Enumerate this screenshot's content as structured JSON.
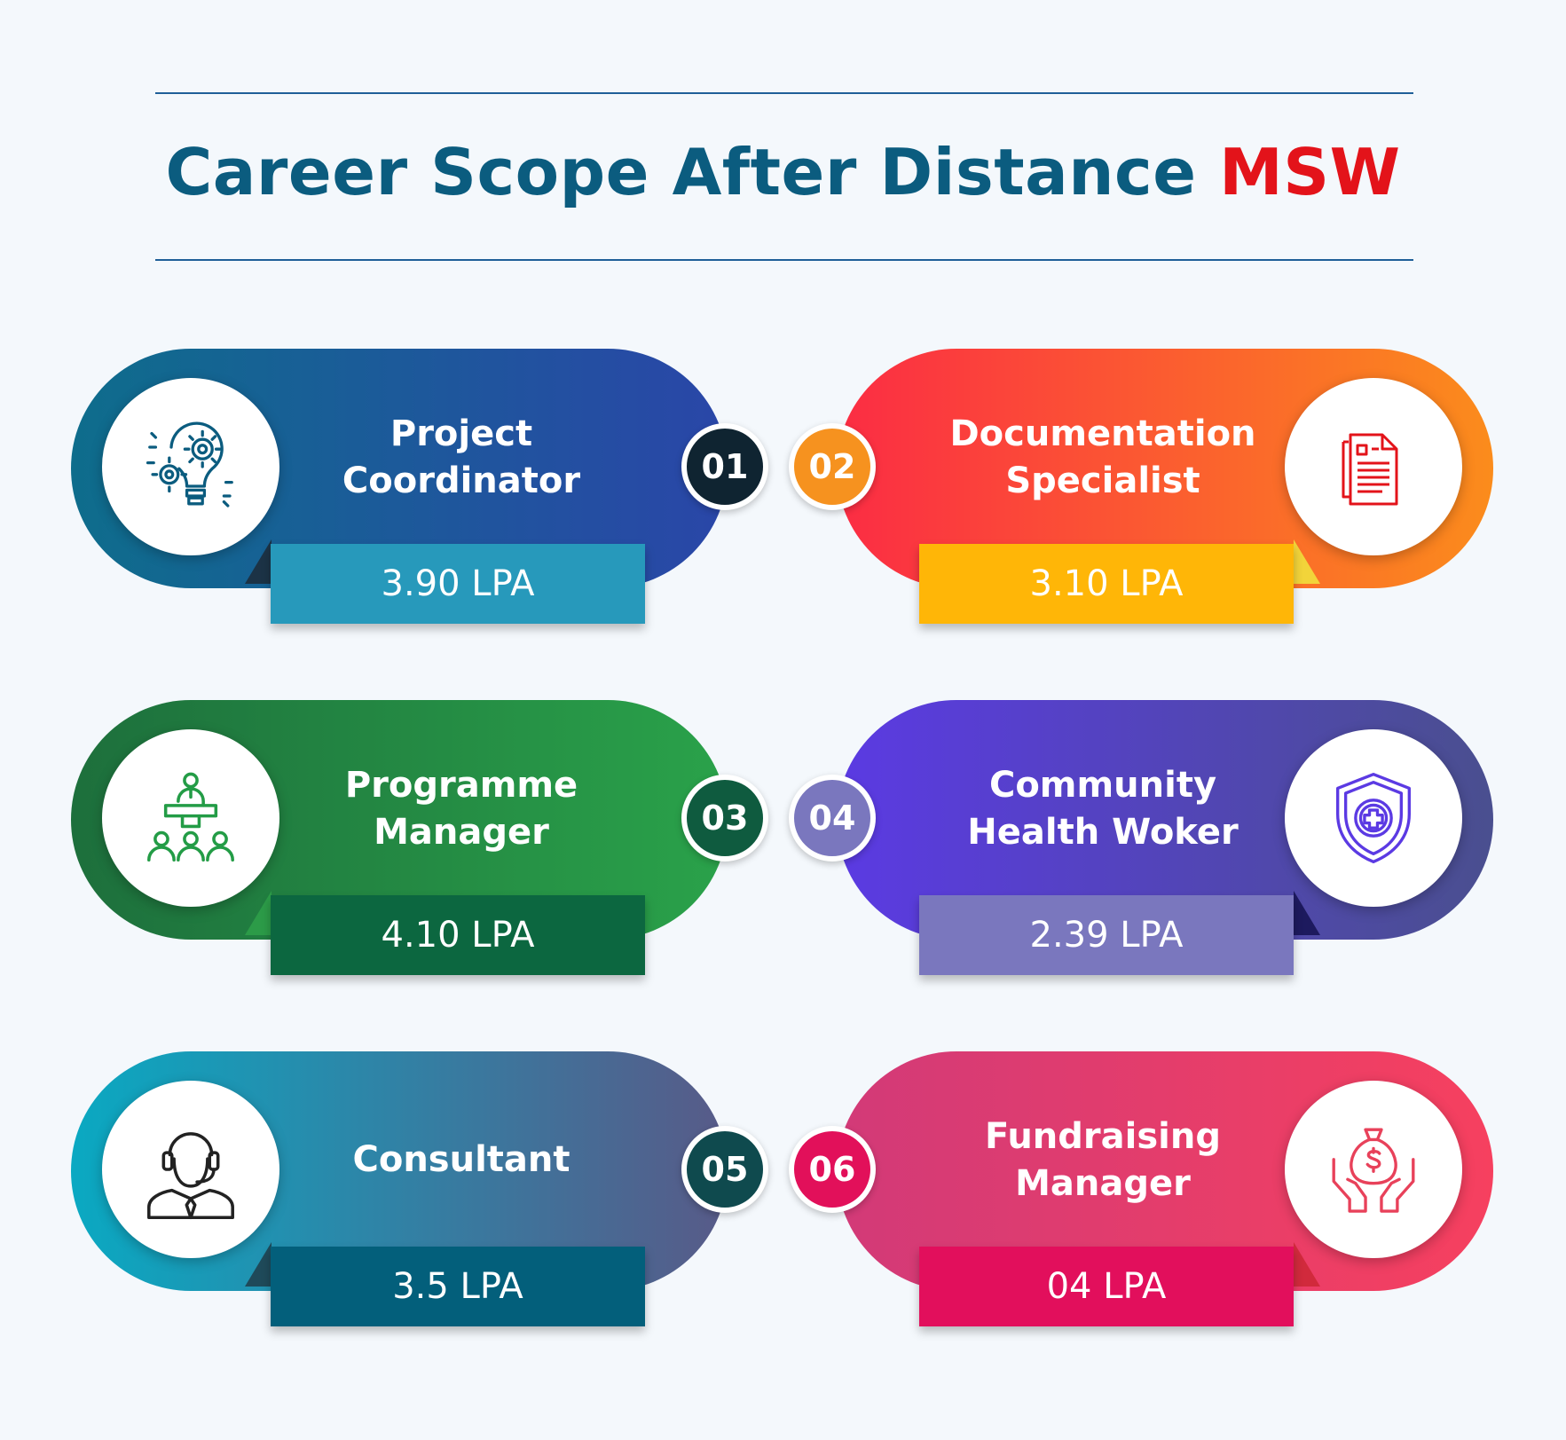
{
  "header": {
    "title_main": "Career Scope After Distance",
    "title_accent": "MSW"
  },
  "cards": [
    {
      "number": "01",
      "title_line1": "Project",
      "title_line2": "Coordinator",
      "salary": "3.90 LPA",
      "icon": "idea-gears-icon",
      "colors": {
        "grad_from": "#0e6d8c",
        "grad_to": "#2a46a8",
        "salary_bg": "#2799bb",
        "number_bg": "#0f2431",
        "icon": "#0b5c7f"
      }
    },
    {
      "number": "02",
      "title_line1": "Documentation",
      "title_line2": "Specialist",
      "salary": "3.10 LPA",
      "icon": "document-icon",
      "colors": {
        "grad_from": "#fb2c44",
        "grad_to": "#fb8c1c",
        "salary_bg": "#ffb607",
        "number_bg": "#f6921f",
        "icon": "#e3131a"
      }
    },
    {
      "number": "03",
      "title_line1": "Programme",
      "title_line2": "Manager",
      "salary": "4.10 LPA",
      "icon": "presenter-audience-icon",
      "colors": {
        "grad_from": "#1d6f3c",
        "grad_to": "#2aa24a",
        "salary_bg": "#0c6740",
        "number_bg": "#0f5b3f",
        "icon": "#239c46"
      }
    },
    {
      "number": "04",
      "title_line1": "Community",
      "title_line2": "Health Woker",
      "salary": "2.39 LPA",
      "icon": "shield-medical-icon",
      "colors": {
        "grad_from": "#5b3ae3",
        "grad_to": "#4a4f8f",
        "salary_bg": "#7a77be",
        "number_bg": "#7a77be",
        "icon": "#5b3ae3"
      }
    },
    {
      "number": "05",
      "title_line1": "Consultant",
      "title_line2": "",
      "salary": "3.5 LPA",
      "icon": "headset-agent-icon",
      "colors": {
        "grad_from": "#0aa9c2",
        "grad_to": "#585a88",
        "salary_bg": "#035f7b",
        "number_bg": "#0f4a4e",
        "icon": "#222222"
      }
    },
    {
      "number": "06",
      "title_line1": "Fundraising",
      "title_line2": "Manager",
      "salary": "04 LPA",
      "icon": "money-hands-icon",
      "colors": {
        "grad_from": "#d23a78",
        "grad_to": "#f6405f",
        "salary_bg": "#e20f5c",
        "number_bg": "#e2105a",
        "icon": "#e8415a"
      }
    }
  ]
}
